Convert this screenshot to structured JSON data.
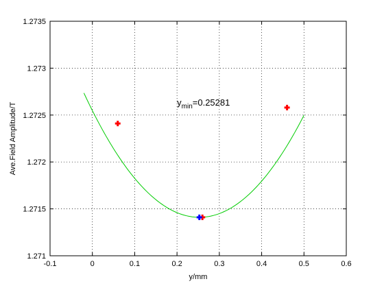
{
  "chart_data": {
    "type": "line",
    "xlabel": "y/mm",
    "ylabel": "Ave.Field Amplitude/T",
    "xlim": [
      -0.1,
      0.6
    ],
    "ylim": [
      1.271,
      1.2735
    ],
    "xticks": [
      "-0.1",
      "0",
      "0.1",
      "0.2",
      "0.3",
      "0.4",
      "0.5",
      "0.6"
    ],
    "yticks": [
      "1.271",
      "1.2715",
      "1.272",
      "1.2725",
      "1.273",
      "1.2735"
    ],
    "grid": true,
    "annotation": {
      "prefix": "y",
      "subscript": "min",
      "value": "=0.25281",
      "x": 0.2,
      "y": 1.2726
    },
    "fit_curve": {
      "color": "#00cc00",
      "vertex": [
        0.25281,
        1.27141
      ],
      "coef": 0.0178,
      "x_start": -0.02,
      "x_end": 0.5
    },
    "measured_points": {
      "color": "#ff0000",
      "x": [
        0.06,
        0.26,
        0.46
      ],
      "y": [
        1.27241,
        1.27141,
        1.27258
      ]
    },
    "minimum_point": {
      "color": "#0000ff",
      "x": 0.25281,
      "y": 1.27141
    }
  }
}
